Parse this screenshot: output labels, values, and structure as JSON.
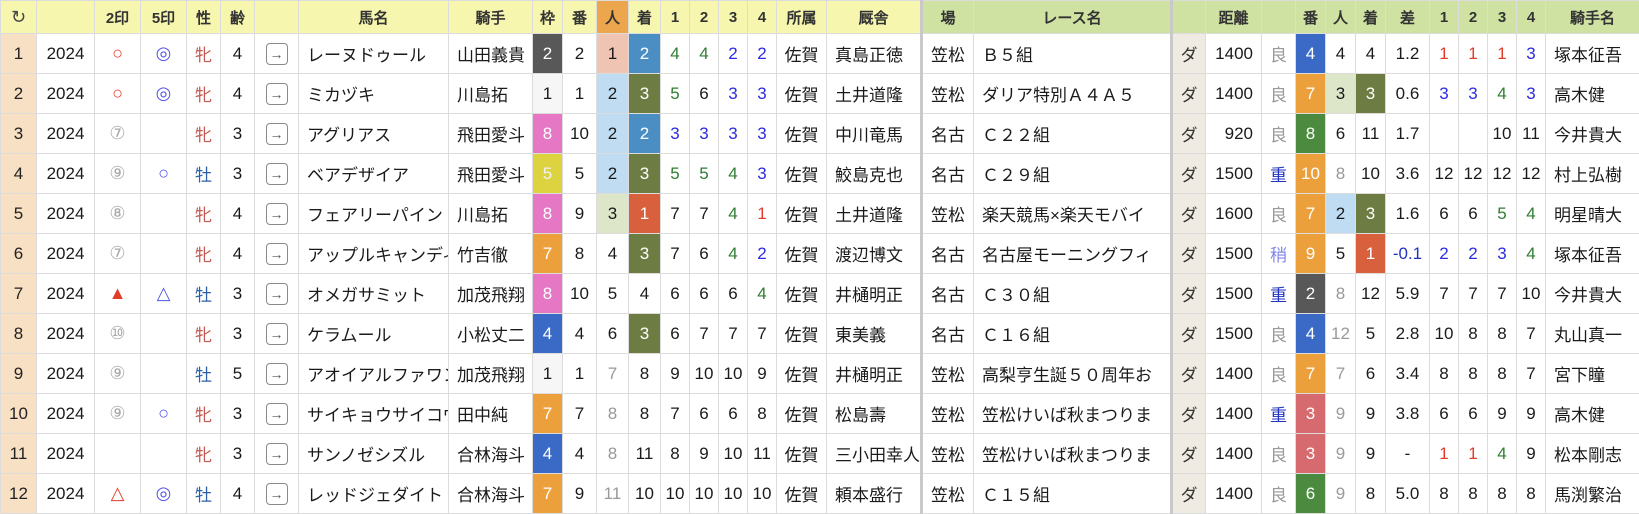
{
  "icons": {
    "refresh": "↻",
    "open_row": "→"
  },
  "palette": {
    "header_yellow": "#f6f6ae",
    "header_green": "#cfe2a2",
    "header_orange": "#eca64e",
    "row_number_bg": "#f8e0c4",
    "frame_white": "#f6f6f6",
    "frame_black": "#585858",
    "frame_red": "#d66a6e",
    "frame_blue": "#3a69c6",
    "frame_yellow": "#ddd23f",
    "frame_green": "#4c8a3f",
    "frame_orange": "#eca03c",
    "frame_pink": "#e577c5",
    "pop1_bg": "#efc4b2",
    "pop2_bg": "#c0dcf2",
    "pop3_bg": "#dde6c8",
    "finish1_bg": "#d9603c",
    "finish2_bg": "#4a8ec3",
    "finish3_bg": "#6d7c43",
    "corner_red": "#e23c28",
    "corner_blue": "#2b2be4",
    "corner_green": "#2f7d32"
  },
  "columns": [
    {
      "key": "no",
      "label": "",
      "h": "hy",
      "cls": "c-no"
    },
    {
      "key": "year",
      "label": "",
      "h": "hy",
      "cls": ""
    },
    {
      "key": "mark2",
      "label": "2印",
      "h": "hy",
      "cls": "mk"
    },
    {
      "key": "mark5",
      "label": "5印",
      "h": "hy",
      "cls": "mk"
    },
    {
      "key": "sex",
      "label": "性",
      "h": "hy",
      "cls": ""
    },
    {
      "key": "age",
      "label": "齢",
      "h": "hy",
      "cls": ""
    },
    {
      "key": "link",
      "label": "",
      "h": "hy",
      "cls": ""
    },
    {
      "key": "horse",
      "label": "馬名",
      "h": "hy",
      "cls": "left"
    },
    {
      "key": "jockey",
      "label": "騎手",
      "h": "hy",
      "cls": "left"
    },
    {
      "key": "waku",
      "label": "枠",
      "h": "hy",
      "cls": ""
    },
    {
      "key": "num",
      "label": "番",
      "h": "hy",
      "cls": ""
    },
    {
      "key": "pop",
      "label": "人",
      "h": "ho",
      "cls": ""
    },
    {
      "key": "fin",
      "label": "着",
      "h": "hy",
      "cls": ""
    },
    {
      "key": "c1",
      "label": "1",
      "h": "hy",
      "cls": ""
    },
    {
      "key": "c2",
      "label": "2",
      "h": "hy",
      "cls": ""
    },
    {
      "key": "c3",
      "label": "3",
      "h": "hy",
      "cls": ""
    },
    {
      "key": "c4",
      "label": "4",
      "h": "hy",
      "cls": ""
    },
    {
      "key": "belong",
      "label": "所属",
      "h": "hy",
      "cls": ""
    },
    {
      "key": "stable",
      "label": "厩舎",
      "h": "hy",
      "cls": "left"
    },
    {
      "key": "place",
      "label": "場",
      "h": "hg thick",
      "cls": "thick"
    },
    {
      "key": "race",
      "label": "レース名",
      "h": "hg",
      "cls": "left"
    },
    {
      "key": "surf",
      "label": "",
      "h": "hg thick",
      "cls": "surf-cell thick"
    },
    {
      "key": "dist",
      "label": "距離",
      "h": "hg",
      "cls": "right"
    },
    {
      "key": "cond",
      "label": "",
      "h": "hg",
      "cls": ""
    },
    {
      "key": "num2",
      "label": "番",
      "h": "hg",
      "cls": ""
    },
    {
      "key": "pop2",
      "label": "人",
      "h": "hg",
      "cls": ""
    },
    {
      "key": "fin2",
      "label": "着",
      "h": "hg",
      "cls": ""
    },
    {
      "key": "diff",
      "label": "差",
      "h": "hg",
      "cls": ""
    },
    {
      "key": "d1",
      "label": "1",
      "h": "hg",
      "cls": ""
    },
    {
      "key": "d2",
      "label": "2",
      "h": "hg",
      "cls": ""
    },
    {
      "key": "d3",
      "label": "3",
      "h": "hg",
      "cls": ""
    },
    {
      "key": "d4",
      "label": "4",
      "h": "hg",
      "cls": ""
    },
    {
      "key": "jockey2",
      "label": "騎手名",
      "h": "hg",
      "cls": "left"
    }
  ],
  "rows": [
    {
      "no": "1",
      "year": "2024",
      "mark2": {
        "t": "○",
        "c": "mk-r"
      },
      "mark5": {
        "t": "◎",
        "c": "mk-b"
      },
      "sex": {
        "t": "牝",
        "c": "sexF"
      },
      "age": "4",
      "link": "→",
      "horse": "レーヌドゥール",
      "jockey": "山田義貴",
      "waku": {
        "t": "2",
        "c": "w2"
      },
      "num": "2",
      "pop": {
        "t": "1",
        "c": "p1"
      },
      "fin": {
        "t": "2",
        "c": "f2"
      },
      "c1": {
        "t": "4",
        "c": "cg"
      },
      "c2": {
        "t": "4",
        "c": "cg"
      },
      "c3": {
        "t": "2",
        "c": "cb"
      },
      "c4": {
        "t": "2",
        "c": "cb"
      },
      "belong": "佐賀",
      "stable": "真島正徳",
      "place": "笠松",
      "race": "Ｂ５組",
      "surf": "ダ",
      "dist": "1400",
      "cond": {
        "t": "良",
        "c": "good"
      },
      "num2": {
        "t": "4",
        "c": "w4"
      },
      "pop2": "4",
      "fin2": "4",
      "diff": "1.2",
      "d1": {
        "t": "1",
        "c": "cr"
      },
      "d2": {
        "t": "1",
        "c": "cr"
      },
      "d3": {
        "t": "1",
        "c": "cr"
      },
      "d4": {
        "t": "3",
        "c": "cb"
      },
      "jockey2": "塚本征吾"
    },
    {
      "no": "2",
      "year": "2024",
      "mark2": {
        "t": "○",
        "c": "mk-r"
      },
      "mark5": {
        "t": "◎",
        "c": "mk-b"
      },
      "sex": {
        "t": "牝",
        "c": "sexF"
      },
      "age": "4",
      "link": "→",
      "horse": "ミカヅキ",
      "jockey": "川島拓",
      "waku": {
        "t": "1",
        "c": "w1"
      },
      "num": "1",
      "pop": {
        "t": "2",
        "c": "p2"
      },
      "fin": {
        "t": "3",
        "c": "f3"
      },
      "c1": {
        "t": "5",
        "c": "cg"
      },
      "c2": "6",
      "c3": {
        "t": "3",
        "c": "cb"
      },
      "c4": {
        "t": "3",
        "c": "cb"
      },
      "belong": "佐賀",
      "stable": "土井道隆",
      "place": "笠松",
      "race": "ダリア特別Ａ４Ａ５",
      "surf": "ダ",
      "dist": "1400",
      "cond": {
        "t": "良",
        "c": "good"
      },
      "num2": {
        "t": "7",
        "c": "w7"
      },
      "pop2": {
        "t": "3",
        "c": "p3"
      },
      "fin2": {
        "t": "3",
        "c": "f3"
      },
      "diff": "0.6",
      "d1": {
        "t": "3",
        "c": "cb"
      },
      "d2": {
        "t": "3",
        "c": "cb"
      },
      "d3": {
        "t": "4",
        "c": "cg"
      },
      "d4": {
        "t": "3",
        "c": "cb"
      },
      "jockey2": "高木健"
    },
    {
      "no": "3",
      "year": "2024",
      "mark2": {
        "t": "⑦",
        "c": "mk-g"
      },
      "mark5": "",
      "sex": {
        "t": "牝",
        "c": "sexF"
      },
      "age": "3",
      "link": "→",
      "horse": "アグリアス",
      "jockey": "飛田愛斗",
      "waku": {
        "t": "8",
        "c": "w8"
      },
      "num": "10",
      "pop": {
        "t": "2",
        "c": "p2"
      },
      "fin": {
        "t": "2",
        "c": "f2"
      },
      "c1": {
        "t": "3",
        "c": "cb"
      },
      "c2": {
        "t": "3",
        "c": "cb"
      },
      "c3": {
        "t": "3",
        "c": "cb"
      },
      "c4": {
        "t": "3",
        "c": "cb"
      },
      "belong": "佐賀",
      "stable": "中川竜馬",
      "place": "名古",
      "race": "Ｃ２２組",
      "surf": "ダ",
      "dist": "920",
      "cond": {
        "t": "良",
        "c": "good"
      },
      "num2": {
        "t": "8",
        "c": "w6"
      },
      "pop2": "6",
      "fin2": "11",
      "diff": "1.7",
      "d1": "",
      "d2": "",
      "d3": "10",
      "d4": "11",
      "jockey2": "今井貴大"
    },
    {
      "no": "4",
      "year": "2024",
      "mark2": {
        "t": "⑨",
        "c": "mk-g"
      },
      "mark5": {
        "t": "○",
        "c": "mk-b"
      },
      "sex": {
        "t": "牡",
        "c": "sexM"
      },
      "age": "3",
      "link": "→",
      "horse": "ベアデザイア",
      "jockey": "飛田愛斗",
      "waku": {
        "t": "5",
        "c": "w5"
      },
      "num": "5",
      "pop": {
        "t": "2",
        "c": "p2"
      },
      "fin": {
        "t": "3",
        "c": "f3"
      },
      "c1": {
        "t": "5",
        "c": "cg"
      },
      "c2": {
        "t": "5",
        "c": "cg"
      },
      "c3": {
        "t": "4",
        "c": "cg"
      },
      "c4": {
        "t": "3",
        "c": "cb"
      },
      "belong": "佐賀",
      "stable": "鮫島克也",
      "place": "名古",
      "race": "Ｃ２９組",
      "surf": "ダ",
      "dist": "1500",
      "cond": {
        "t": "重",
        "c": "heavy"
      },
      "num2": {
        "t": "10",
        "c": "w7"
      },
      "pop2": {
        "t": "8",
        "c": "tg"
      },
      "fin2": "10",
      "diff": "3.6",
      "d1": "12",
      "d2": "12",
      "d3": "12",
      "d4": "12",
      "jockey2": "村上弘樹"
    },
    {
      "no": "5",
      "year": "2024",
      "mark2": {
        "t": "⑧",
        "c": "mk-g"
      },
      "mark5": "",
      "sex": {
        "t": "牝",
        "c": "sexF"
      },
      "age": "4",
      "link": "→",
      "horse": "フェアリーパイン",
      "jockey": "川島拓",
      "waku": {
        "t": "8",
        "c": "w8"
      },
      "num": "9",
      "pop": {
        "t": "3",
        "c": "p3"
      },
      "fin": {
        "t": "1",
        "c": "f1"
      },
      "c1": "7",
      "c2": "7",
      "c3": {
        "t": "4",
        "c": "cg"
      },
      "c4": {
        "t": "1",
        "c": "cr"
      },
      "belong": "佐賀",
      "stable": "土井道隆",
      "place": "笠松",
      "race": "楽天競馬×楽天モバイ",
      "surf": "ダ",
      "dist": "1600",
      "cond": {
        "t": "良",
        "c": "good"
      },
      "num2": {
        "t": "7",
        "c": "w7"
      },
      "pop2": {
        "t": "2",
        "c": "p2"
      },
      "fin2": {
        "t": "3",
        "c": "f3"
      },
      "diff": "1.6",
      "d1": "6",
      "d2": "6",
      "d3": {
        "t": "5",
        "c": "cg"
      },
      "d4": {
        "t": "4",
        "c": "cg"
      },
      "jockey2": "明星晴大"
    },
    {
      "no": "6",
      "year": "2024",
      "mark2": {
        "t": "⑦",
        "c": "mk-g"
      },
      "mark5": "",
      "sex": {
        "t": "牝",
        "c": "sexF"
      },
      "age": "4",
      "link": "→",
      "horse": "アップルキャンディ",
      "jockey": "竹吉徹",
      "waku": {
        "t": "7",
        "c": "w7"
      },
      "num": "8",
      "pop": "4",
      "fin": {
        "t": "3",
        "c": "f3"
      },
      "c1": "7",
      "c2": "6",
      "c3": {
        "t": "4",
        "c": "cg"
      },
      "c4": {
        "t": "2",
        "c": "cb"
      },
      "belong": "佐賀",
      "stable": "渡辺博文",
      "place": "名古",
      "race": "名古屋モーニングフィ",
      "surf": "ダ",
      "dist": "1500",
      "cond": {
        "t": "稍",
        "c": "soft"
      },
      "num2": {
        "t": "9",
        "c": "w7"
      },
      "pop2": "5",
      "fin2": {
        "t": "1",
        "c": "f1"
      },
      "diff": {
        "t": "-0.1",
        "c": "neg"
      },
      "d1": {
        "t": "2",
        "c": "cb"
      },
      "d2": {
        "t": "2",
        "c": "cb"
      },
      "d3": {
        "t": "3",
        "c": "cb"
      },
      "d4": {
        "t": "4",
        "c": "cg"
      },
      "jockey2": "塚本征吾"
    },
    {
      "no": "7",
      "year": "2024",
      "mark2": {
        "t": "▲",
        "c": "mk-r"
      },
      "mark5": {
        "t": "△",
        "c": "mk-b"
      },
      "sex": {
        "t": "牡",
        "c": "sexM"
      },
      "age": "3",
      "link": "→",
      "horse": "オメガサミット",
      "jockey": "加茂飛翔",
      "waku": {
        "t": "8",
        "c": "w8"
      },
      "num": "10",
      "pop": "5",
      "fin": "4",
      "c1": "6",
      "c2": "6",
      "c3": "6",
      "c4": {
        "t": "4",
        "c": "cg"
      },
      "belong": "佐賀",
      "stable": "井樋明正",
      "place": "名古",
      "race": "Ｃ３０組",
      "surf": "ダ",
      "dist": "1500",
      "cond": {
        "t": "重",
        "c": "heavy"
      },
      "num2": {
        "t": "2",
        "c": "w2"
      },
      "pop2": {
        "t": "8",
        "c": "tg"
      },
      "fin2": "12",
      "diff": "5.9",
      "d1": "7",
      "d2": "7",
      "d3": "7",
      "d4": "10",
      "jockey2": "今井貴大"
    },
    {
      "no": "8",
      "year": "2024",
      "mark2": {
        "t": "⑩",
        "c": "mk-g"
      },
      "mark5": "",
      "sex": {
        "t": "牝",
        "c": "sexF"
      },
      "age": "3",
      "link": "→",
      "horse": "ケラムール",
      "jockey": "小松丈二",
      "waku": {
        "t": "4",
        "c": "w4"
      },
      "num": "4",
      "pop": "6",
      "fin": {
        "t": "3",
        "c": "f3"
      },
      "c1": "6",
      "c2": "7",
      "c3": "7",
      "c4": "7",
      "belong": "佐賀",
      "stable": "東美義",
      "place": "名古",
      "race": "Ｃ１６組",
      "surf": "ダ",
      "dist": "1500",
      "cond": {
        "t": "良",
        "c": "good"
      },
      "num2": {
        "t": "4",
        "c": "w4"
      },
      "pop2": {
        "t": "12",
        "c": "tg"
      },
      "fin2": "5",
      "diff": "2.8",
      "d1": "10",
      "d2": "8",
      "d3": "8",
      "d4": "7",
      "jockey2": "丸山真一"
    },
    {
      "no": "9",
      "year": "2024",
      "mark2": {
        "t": "⑨",
        "c": "mk-g"
      },
      "mark5": "",
      "sex": {
        "t": "牡",
        "c": "sexM"
      },
      "age": "5",
      "link": "→",
      "horse": "アオイアルファワン",
      "jockey": "加茂飛翔",
      "waku": {
        "t": "1",
        "c": "w1"
      },
      "num": "1",
      "pop": {
        "t": "7",
        "c": "tg"
      },
      "fin": "8",
      "c1": "9",
      "c2": "10",
      "c3": "10",
      "c4": "9",
      "belong": "佐賀",
      "stable": "井樋明正",
      "place": "笠松",
      "race": "高梨亨生誕５０周年お",
      "surf": "ダ",
      "dist": "1400",
      "cond": {
        "t": "良",
        "c": "good"
      },
      "num2": {
        "t": "7",
        "c": "w7"
      },
      "pop2": {
        "t": "7",
        "c": "tg"
      },
      "fin2": "6",
      "diff": "3.4",
      "d1": "8",
      "d2": "8",
      "d3": "8",
      "d4": "7",
      "jockey2": "宮下瞳"
    },
    {
      "no": "10",
      "year": "2024",
      "mark2": {
        "t": "⑨",
        "c": "mk-g"
      },
      "mark5": {
        "t": "○",
        "c": "mk-b"
      },
      "sex": {
        "t": "牝",
        "c": "sexF"
      },
      "age": "3",
      "link": "→",
      "horse": "サイキョウサイコウ",
      "jockey": "田中純",
      "waku": {
        "t": "7",
        "c": "w7"
      },
      "num": "7",
      "pop": {
        "t": "8",
        "c": "tg"
      },
      "fin": "8",
      "c1": "7",
      "c2": "6",
      "c3": "6",
      "c4": "8",
      "belong": "佐賀",
      "stable": "松島壽",
      "place": "笠松",
      "race": "笠松けいば秋まつりま",
      "surf": "ダ",
      "dist": "1400",
      "cond": {
        "t": "重",
        "c": "heavy"
      },
      "num2": {
        "t": "3",
        "c": "w3"
      },
      "pop2": {
        "t": "9",
        "c": "tg"
      },
      "fin2": "9",
      "diff": "3.8",
      "d1": "6",
      "d2": "6",
      "d3": "9",
      "d4": "9",
      "jockey2": "高木健"
    },
    {
      "no": "11",
      "year": "2024",
      "mark2": "",
      "mark5": "",
      "sex": {
        "t": "牝",
        "c": "sexF"
      },
      "age": "3",
      "link": "→",
      "horse": "サンノゼシズル",
      "jockey": "合林海斗",
      "waku": {
        "t": "4",
        "c": "w4"
      },
      "num": "4",
      "pop": {
        "t": "8",
        "c": "tg"
      },
      "fin": "11",
      "c1": "8",
      "c2": "9",
      "c3": "10",
      "c4": "11",
      "belong": "佐賀",
      "stable": "三小田幸人",
      "place": "笠松",
      "race": "笠松けいば秋まつりま",
      "surf": "ダ",
      "dist": "1400",
      "cond": {
        "t": "良",
        "c": "good"
      },
      "num2": {
        "t": "3",
        "c": "w3"
      },
      "pop2": {
        "t": "9",
        "c": "tg"
      },
      "fin2": "9",
      "diff": "-",
      "d1": {
        "t": "1",
        "c": "cr"
      },
      "d2": {
        "t": "1",
        "c": "cr"
      },
      "d3": {
        "t": "4",
        "c": "cg"
      },
      "d4": "9",
      "jockey2": "松本剛志"
    },
    {
      "no": "12",
      "year": "2024",
      "mark2": {
        "t": "△",
        "c": "mk-r"
      },
      "mark5": {
        "t": "◎",
        "c": "mk-b"
      },
      "sex": {
        "t": "牡",
        "c": "sexM"
      },
      "age": "4",
      "link": "→",
      "horse": "レッドジェダイト",
      "jockey": "合林海斗",
      "waku": {
        "t": "7",
        "c": "w7"
      },
      "num": "9",
      "pop": {
        "t": "11",
        "c": "tg"
      },
      "fin": "10",
      "c1": "10",
      "c2": "10",
      "c3": "10",
      "c4": "10",
      "belong": "佐賀",
      "stable": "頼本盛行",
      "place": "笠松",
      "race": "Ｃ１５組",
      "surf": "ダ",
      "dist": "1400",
      "cond": {
        "t": "良",
        "c": "good"
      },
      "num2": {
        "t": "6",
        "c": "w6"
      },
      "pop2": {
        "t": "9",
        "c": "tg"
      },
      "fin2": "8",
      "diff": "5.0",
      "d1": "8",
      "d2": "8",
      "d3": "8",
      "d4": "8",
      "jockey2": "馬渕繁治"
    }
  ]
}
